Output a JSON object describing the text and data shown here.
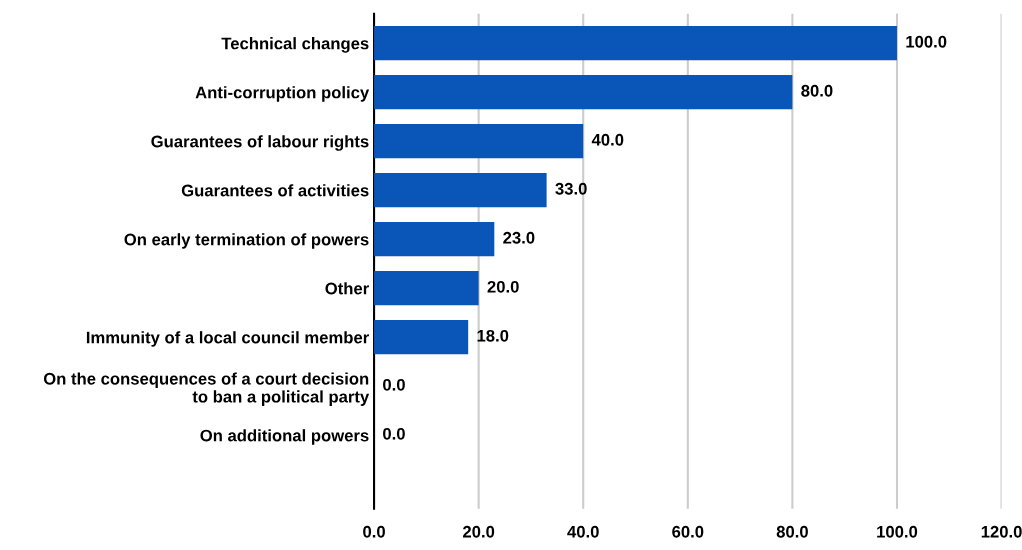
{
  "chart_data": {
    "type": "bar",
    "orientation": "horizontal",
    "categories": [
      "Technical changes",
      "Anti-corruption policy",
      "Guarantees of labour rights",
      "Guarantees of activities",
      "On early termination of powers",
      "Other",
      "Immunity of a local council member",
      "On the consequences of a court decision\nto ban a political party",
      "On additional powers"
    ],
    "values": [
      100.0,
      80.0,
      40.0,
      33.0,
      23.0,
      20.0,
      18.0,
      0.0,
      0.0
    ],
    "color": "#0a56b8",
    "xlim": [
      0,
      120
    ],
    "xticks": [
      {
        "value": 0,
        "label": "0.0"
      },
      {
        "value": 20,
        "label": "20.0"
      },
      {
        "value": 40,
        "label": "40.0"
      },
      {
        "value": 60,
        "label": "60.0"
      },
      {
        "value": 80,
        "label": "80.0"
      },
      {
        "value": 100,
        "label": "100.0"
      },
      {
        "value": 120,
        "label": "120.0"
      }
    ],
    "value_labels": [
      "100.0",
      "80.0",
      "40.0",
      "33.0",
      "23.0",
      "20.0",
      "18.0",
      "0.0",
      "0.0"
    ],
    "grid": "x",
    "legend": false
  }
}
